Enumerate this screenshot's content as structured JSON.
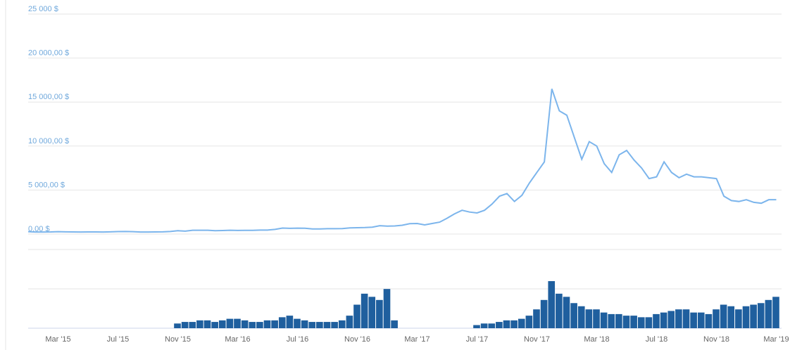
{
  "chart_data": {
    "type": "line",
    "categories": [
      null,
      null,
      null,
      null,
      "Mar '15",
      null,
      null,
      null,
      null,
      null,
      null,
      null,
      "Jul '15",
      null,
      null,
      null,
      null,
      null,
      null,
      null,
      "Nov '15",
      null,
      null,
      null,
      null,
      null,
      null,
      null,
      "Mar '16",
      null,
      null,
      null,
      null,
      null,
      null,
      null,
      "Jul '16",
      null,
      null,
      null,
      null,
      null,
      null,
      null,
      "Nov '16",
      null,
      null,
      null,
      null,
      null,
      null,
      null,
      "Mar '17",
      null,
      null,
      null,
      null,
      null,
      null,
      null,
      "Jul '17",
      null,
      null,
      null,
      null,
      null,
      null,
      null,
      "Nov '17",
      null,
      null,
      null,
      null,
      null,
      null,
      null,
      "Mar '18",
      null,
      null,
      null,
      null,
      null,
      null,
      null,
      "Jul '18",
      null,
      null,
      null,
      null,
      null,
      null,
      null,
      "Nov '18",
      null,
      null,
      null,
      null,
      null,
      null,
      null,
      "Mar '19"
    ],
    "values": [
      270,
      230,
      230,
      240,
      270,
      250,
      240,
      225,
      235,
      240,
      225,
      245,
      280,
      290,
      270,
      230,
      230,
      235,
      245,
      290,
      380,
      330,
      430,
      430,
      430,
      380,
      400,
      430,
      410,
      415,
      420,
      450,
      450,
      530,
      680,
      650,
      670,
      655,
      580,
      575,
      610,
      605,
      615,
      700,
      720,
      740,
      780,
      950,
      900,
      920,
      1000,
      1180,
      1200,
      1040,
      1200,
      1350,
      1800,
      2300,
      2700,
      2500,
      2400,
      2700,
      3400,
      4300,
      4600,
      3700,
      4400,
      5800,
      7000,
      8200,
      16500,
      14000,
      13500,
      11000,
      8500,
      10500,
      10000,
      8000,
      7000,
      9000,
      9500,
      8400,
      7500,
      6300,
      6500,
      8200,
      7000,
      6400,
      6800,
      6500,
      6500,
      6400,
      6300,
      4300,
      3800,
      3700,
      3900,
      3600,
      3500,
      3900,
      3900
    ],
    "color": "#7cb5ec",
    "volume_values": [
      0,
      0,
      0,
      0,
      0,
      0,
      0,
      0,
      0,
      0,
      0,
      0,
      0,
      0,
      0,
      0,
      0,
      0,
      0,
      0,
      3,
      4,
      4,
      5,
      5,
      4,
      5,
      6,
      6,
      5,
      4,
      4,
      5,
      5,
      7,
      8,
      6,
      5,
      4,
      4,
      4,
      4,
      5,
      8,
      15,
      22,
      20,
      18,
      25,
      5,
      0,
      0,
      0,
      0,
      0,
      0,
      0,
      0,
      0,
      0,
      2,
      3,
      3,
      4,
      5,
      5,
      6,
      8,
      12,
      18,
      30,
      22,
      20,
      16,
      14,
      12,
      12,
      10,
      9,
      9,
      8,
      8,
      7,
      7,
      9,
      10,
      11,
      12,
      12,
      10,
      10,
      9,
      12,
      15,
      14,
      12,
      14,
      15,
      16,
      18,
      20
    ],
    "volume_color": "#1f5f9e",
    "ylim": [
      0,
      25000
    ],
    "yticks": [
      {
        "value": 0,
        "label": "0,00 $"
      },
      {
        "value": 5000,
        "label": "5 000,00 $"
      },
      {
        "value": 10000,
        "label": "10 000,00 $"
      },
      {
        "value": 15000,
        "label": "15 000,00 $"
      },
      {
        "value": 20000,
        "label": "20 000,00 $"
      },
      {
        "value": 25000,
        "label": "25 000 $"
      }
    ],
    "grid": true
  }
}
